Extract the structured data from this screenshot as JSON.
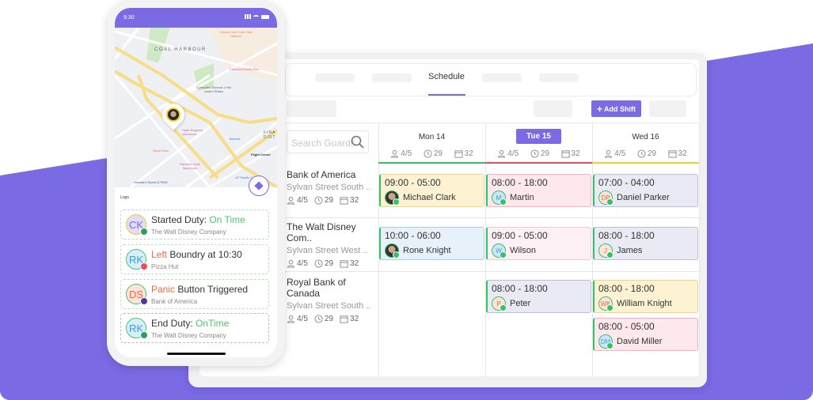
{
  "colors": {
    "accent": "#7a6ae3",
    "green": "#33c26a",
    "orange": "#f26a3c"
  },
  "dashboard": {
    "active_tab": "Schedule",
    "add_shift": "Add Shift",
    "search_placeholder": "Search Guards",
    "days": [
      {
        "label": "Mon 14",
        "guards": "4/5",
        "hours": "29",
        "shifts": "32",
        "line": "#33c26a",
        "active": false
      },
      {
        "label": "Tue 15",
        "guards": "4/5",
        "hours": "29",
        "shifts": "32",
        "line": "#f04b55",
        "active": true
      },
      {
        "label": "Wed 16",
        "guards": "4/5",
        "hours": "29",
        "shifts": "32",
        "line": "#f5cc2a",
        "active": false
      }
    ],
    "sites": [
      {
        "name": "Bank of America",
        "address": "Sylvan Street South ..",
        "guards": "4/5",
        "hours": "29",
        "shifts": "32"
      },
      {
        "name": "The Walt Disney Com..",
        "address": "Sylvan Street West ..",
        "guards": "4/5",
        "hours": "29",
        "shifts": "32"
      },
      {
        "name": "Royal Bank of Canada",
        "address": "Sylvan Street South ..",
        "guards": "4/5",
        "hours": "29",
        "shifts": "32"
      }
    ],
    "shifts": [
      {
        "time": "09:00 - 05:00",
        "name": "Michael Clark",
        "initials": "",
        "day": 0,
        "row": 0
      },
      {
        "time": "10:00 - 06:00",
        "name": "Rone Knight",
        "initials": "",
        "day": 0,
        "row": 1
      },
      {
        "time": "08:00 - 18:00",
        "name": "Martin",
        "initials": "M",
        "day": 1,
        "row": 0
      },
      {
        "time": "09:00 - 05:00",
        "name": "Wilson",
        "initials": "W",
        "day": 1,
        "row": 1
      },
      {
        "time": "08:00 - 18:00",
        "name": "Peter",
        "initials": "P",
        "day": 1,
        "row": 2
      },
      {
        "time": "07:00 - 04:00",
        "name": "Daniel Parker",
        "initials": "DP",
        "day": 2,
        "row": 0
      },
      {
        "time": "08:00 - 18:00",
        "name": "James",
        "initials": "J",
        "day": 2,
        "row": 1
      },
      {
        "time": "08:00 - 18:00",
        "name": "William Knight",
        "initials": "WK",
        "day": 2,
        "row": 2
      },
      {
        "time": "08:00 - 05:00",
        "name": "David Miller",
        "initials": "DM",
        "day": 2,
        "row": 3
      }
    ]
  },
  "phone": {
    "time": "9:30",
    "map_labels": [
      "COAL HARBOUR",
      "Cactus Club Cafe Coal Harbour",
      "Fairmont Pacific Rim",
      "Consulate General of the United States",
      "Hyatt Regency Vancouver",
      "Burrard",
      "Black+Blue",
      "Fairmont Hotel Vancouver",
      "Flight Centre",
      "Victoria's Secret & PINK",
      "CF Pacific Centre",
      "FINA DIST"
    ],
    "logs_title": "Logs",
    "logs": [
      {
        "initials": "CK",
        "prefix": "",
        "title": "Started Duty: ",
        "status": "On Time",
        "company": "The Walt Disney Company"
      },
      {
        "initials": "RK",
        "prefix": "Left",
        "title": " Boundry at 10:30",
        "status": "",
        "company": "Pizza Hut"
      },
      {
        "initials": "DS",
        "prefix": "Panic",
        "title": " Button Triggered",
        "status": "",
        "company": "Bank of America"
      },
      {
        "initials": "RK",
        "prefix": "",
        "title": "End Duty: ",
        "status": "OnTime",
        "company": "The Walt Disney Company"
      }
    ]
  }
}
